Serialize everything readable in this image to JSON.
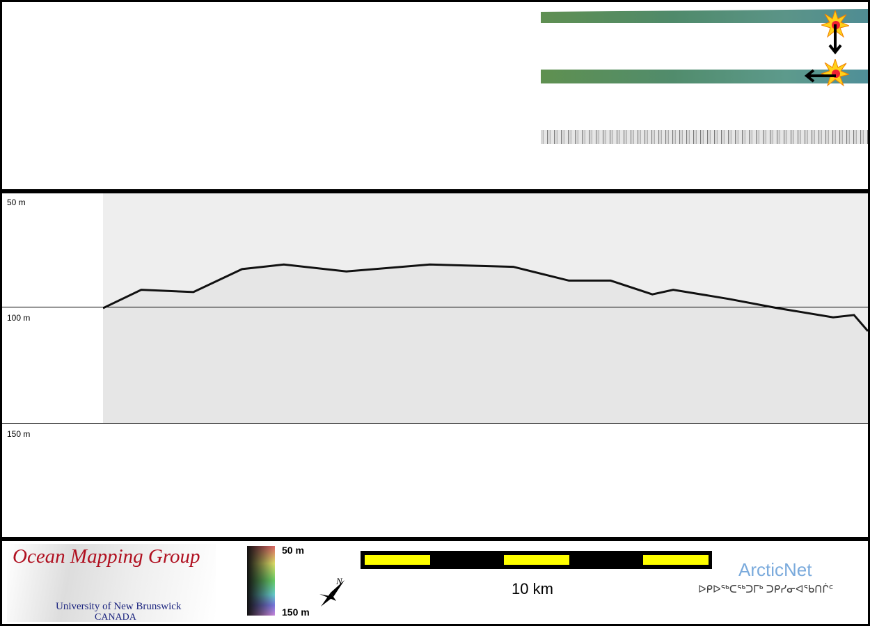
{
  "profile": {
    "depth_labels": [
      "50 m",
      "100 m",
      "150 m"
    ],
    "chart_data": {
      "type": "line",
      "xlabel": "",
      "ylabel": "",
      "ylim": [
        50,
        150
      ],
      "y_ticks": [
        "50 m",
        "100 m",
        "150 m"
      ],
      "x_km": [
        0,
        1.1,
        2.6,
        4,
        5.2,
        7,
        9.4,
        11.8,
        13.4,
        14.6,
        15.8,
        16.4,
        18,
        19.4,
        21,
        21.6,
        22
      ],
      "depth_m": [
        100,
        92,
        93,
        83,
        81,
        84,
        81,
        82,
        88,
        88,
        94,
        92,
        96,
        100,
        104,
        103,
        110
      ]
    }
  },
  "footer": {
    "logo_title": "Ocean Mapping Group",
    "logo_sub1": "University of New Brunswick",
    "logo_sub2": "CANADA",
    "colorbar_top": "50 m",
    "colorbar_bottom": "150 m",
    "north": "N",
    "scale_label": "10 km",
    "arcticnet": "ArcticNet",
    "arcticnet_inuktitut": "ᐅᑭᐅᖅᑕᖅᑐᒥᒃ ᑐᑭᓯᓂᐊᖃᑎᒌᑦ"
  },
  "colors": {
    "scale_yellow": "#ffff00",
    "arcticnet_blue": "#7aaadc",
    "omg_red": "#b01020",
    "unb_blue": "#1a237e"
  }
}
